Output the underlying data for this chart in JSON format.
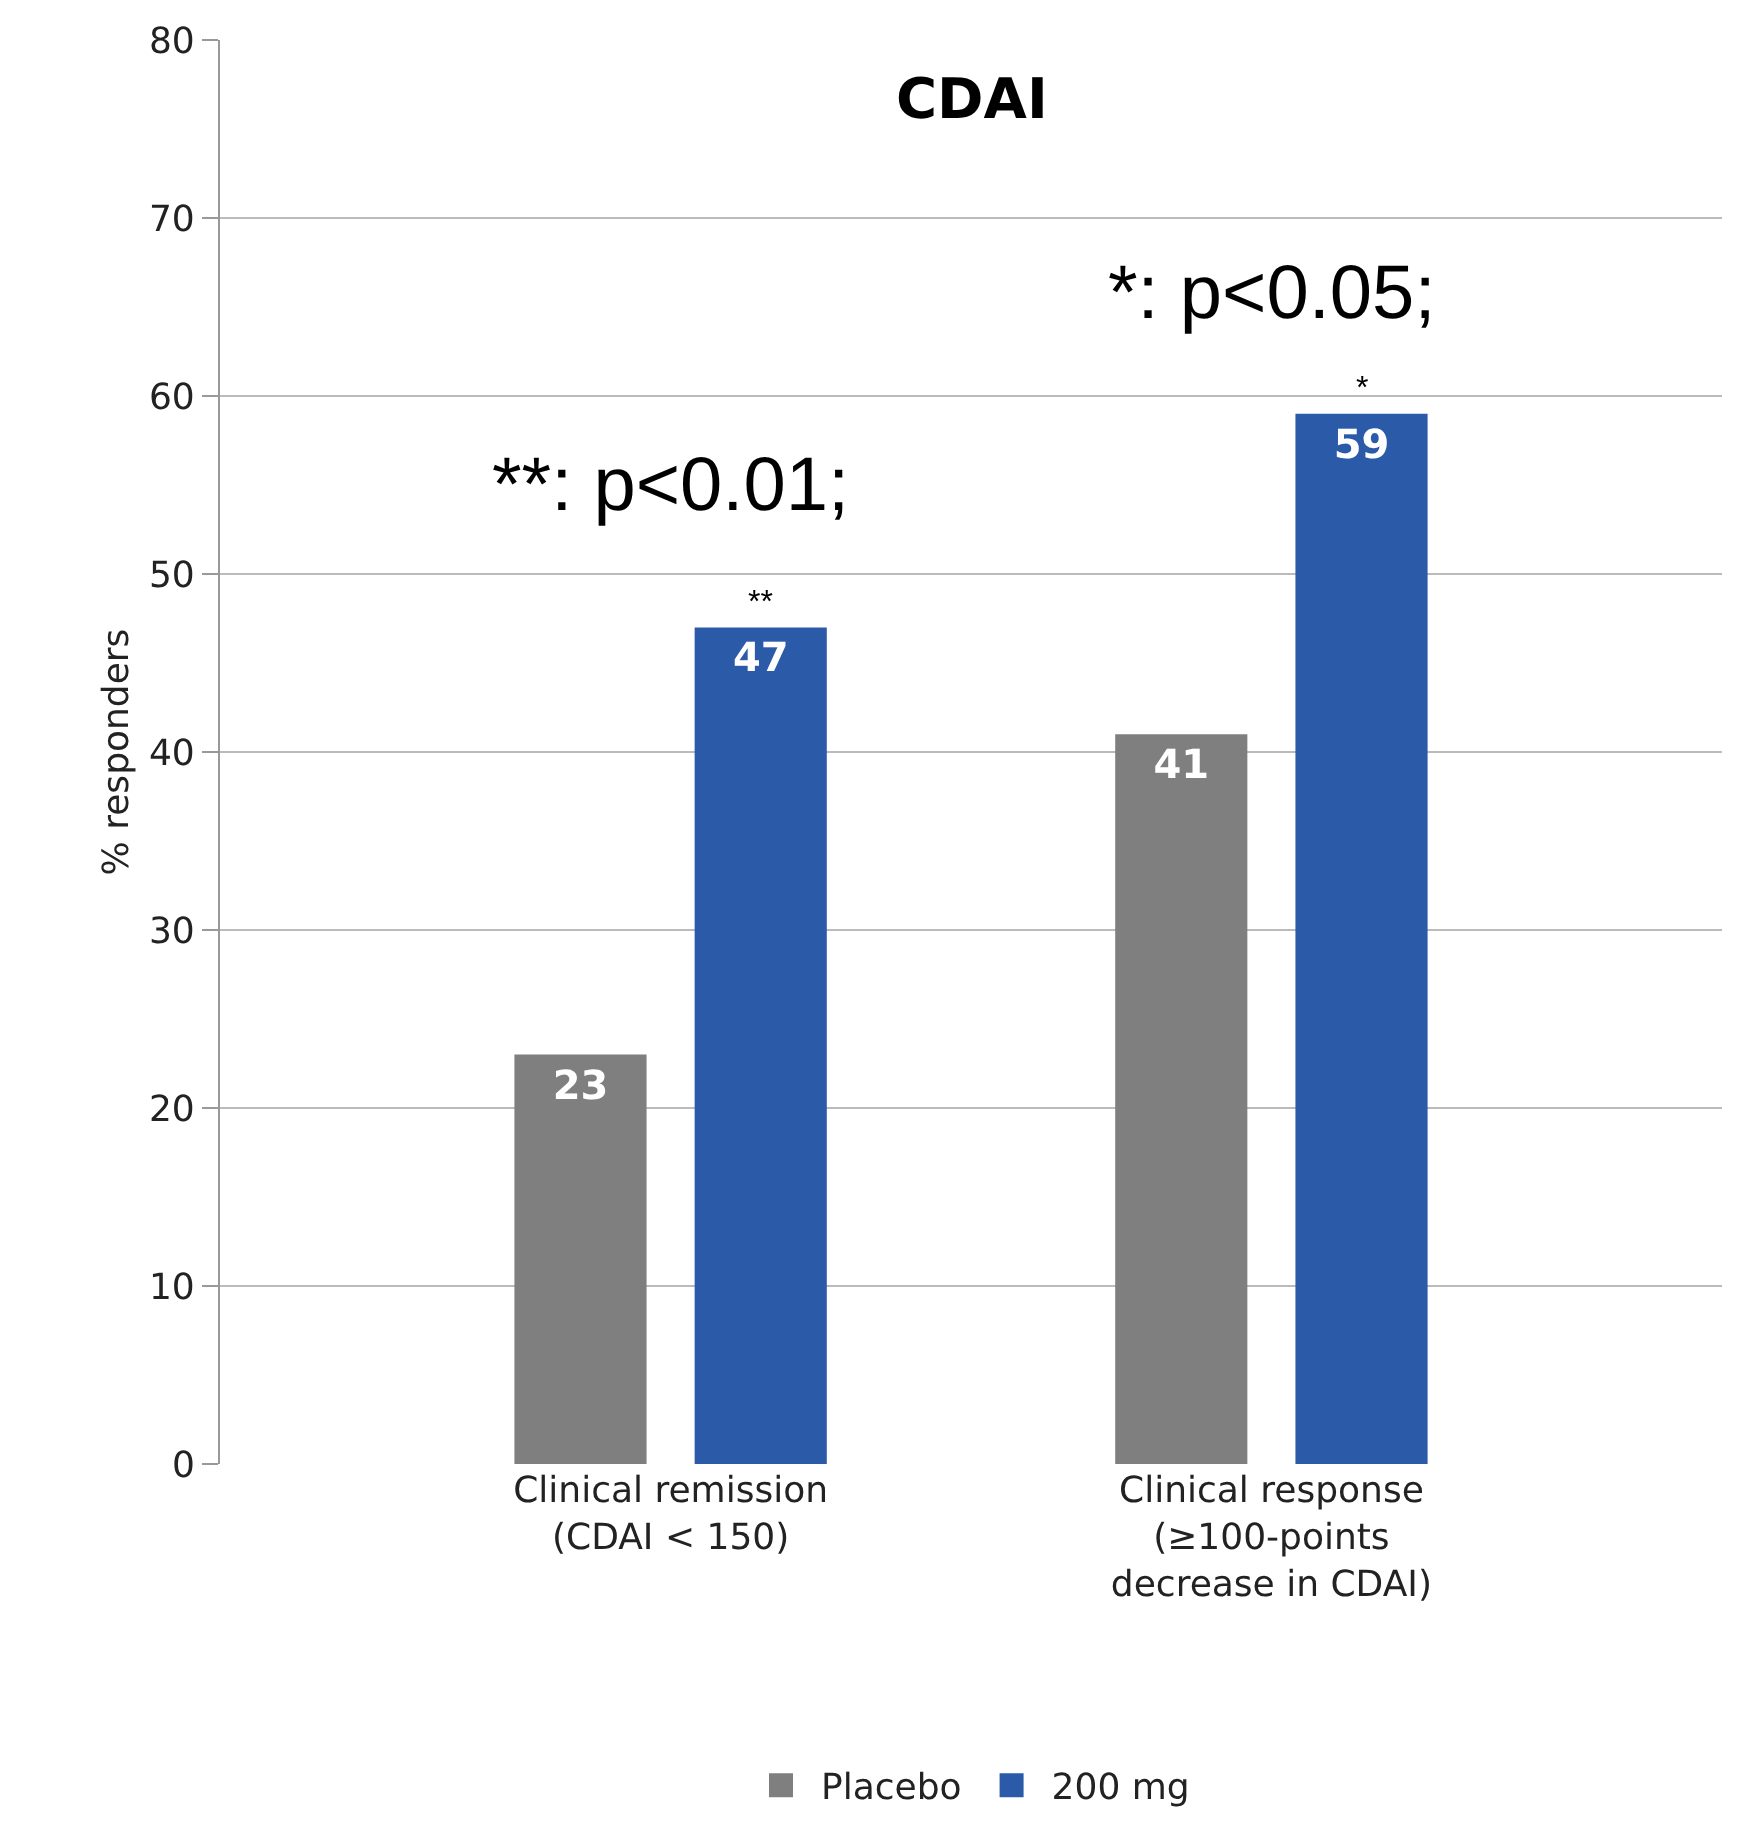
{
  "chart_data": {
    "type": "bar",
    "title": "CDAI",
    "ylabel": "% responders",
    "categories": [
      "Clinical remission (CDAI < 150)",
      "Clinical response (≥100-points decrease in CDAI)"
    ],
    "series": [
      {
        "name": "Placebo",
        "color": "#7f7f7f",
        "values": [
          23,
          41
        ]
      },
      {
        "name": "200 mg",
        "color": "#2a5aa8",
        "values": [
          47,
          59
        ]
      }
    ],
    "ylim": [
      0,
      80
    ],
    "yticks": [
      0,
      10,
      20,
      30,
      40,
      50,
      60,
      70,
      80
    ],
    "grid": "y",
    "legend": "bottom",
    "data_labels": true,
    "annotations": [
      "**",
      "*",
      "**: p<0.01;",
      "*: p<0.05;"
    ]
  }
}
